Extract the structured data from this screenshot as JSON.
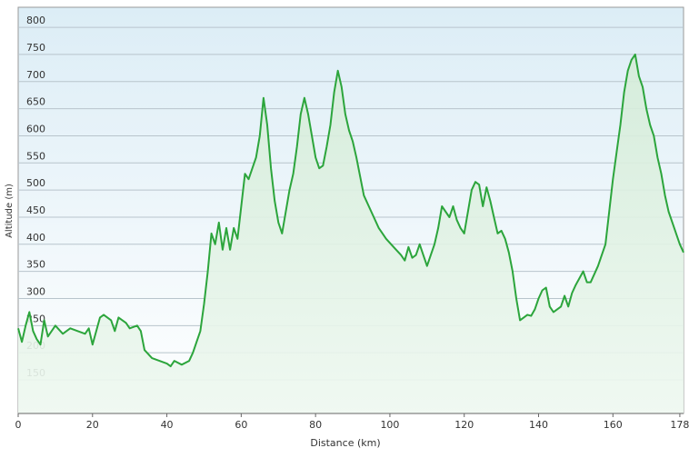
{
  "chart_data": {
    "type": "area",
    "x_label": "Distance  (km)",
    "y_label": "Altitude (m)",
    "x": [
      0,
      1,
      2,
      3,
      4,
      5,
      6,
      7,
      8,
      10,
      12,
      14,
      16,
      18,
      19,
      20,
      22,
      23,
      25,
      26,
      27,
      29,
      30,
      32,
      33,
      34,
      36,
      38,
      40,
      41,
      42,
      44,
      46,
      47,
      48,
      49,
      50,
      51,
      52,
      53,
      54,
      55,
      56,
      57,
      58,
      59,
      60,
      61,
      62,
      63,
      64,
      65,
      66,
      67,
      68,
      69,
      70,
      71,
      72,
      73,
      74,
      75,
      76,
      77,
      78,
      79,
      80,
      81,
      82,
      83,
      84,
      85,
      86,
      87,
      88,
      89,
      90,
      91,
      92,
      93,
      95,
      97,
      99,
      101,
      103,
      104,
      105,
      106,
      107,
      108,
      109,
      110,
      111,
      112,
      113,
      114,
      115,
      116,
      117,
      118,
      119,
      120,
      121,
      122,
      123,
      124,
      125,
      126,
      127,
      128,
      129,
      130,
      131,
      132,
      133,
      134,
      135,
      136,
      137,
      138,
      139,
      140,
      141,
      142,
      143,
      144,
      145,
      146,
      147,
      148,
      149,
      150,
      152,
      153,
      154,
      155,
      156,
      157,
      158,
      159,
      160,
      161,
      162,
      163,
      164,
      165,
      166,
      167,
      168,
      169,
      170,
      171,
      172,
      173,
      174,
      175,
      176,
      177,
      178,
      179
    ],
    "series": [
      {
        "name": "Altitude",
        "color": "#2ca53c",
        "values": [
          245,
          220,
          250,
          275,
          240,
          225,
          215,
          260,
          230,
          250,
          235,
          245,
          240,
          235,
          245,
          215,
          265,
          270,
          260,
          240,
          265,
          255,
          245,
          250,
          240,
          205,
          190,
          185,
          180,
          175,
          185,
          178,
          185,
          200,
          220,
          240,
          290,
          350,
          420,
          400,
          440,
          390,
          430,
          390,
          430,
          410,
          470,
          530,
          520,
          540,
          560,
          600,
          670,
          620,
          540,
          480,
          440,
          420,
          460,
          500,
          530,
          580,
          640,
          670,
          640,
          600,
          560,
          540,
          545,
          580,
          620,
          680,
          720,
          690,
          640,
          610,
          590,
          560,
          525,
          490,
          460,
          430,
          410,
          395,
          380,
          370,
          395,
          375,
          380,
          400,
          380,
          360,
          380,
          400,
          430,
          470,
          460,
          450,
          470,
          445,
          430,
          420,
          460,
          500,
          515,
          510,
          470,
          505,
          480,
          450,
          420,
          425,
          410,
          385,
          350,
          300,
          260,
          265,
          270,
          268,
          280,
          300,
          315,
          320,
          285,
          275,
          280,
          285,
          305,
          285,
          310,
          325,
          350,
          330,
          330,
          345,
          360,
          380,
          400,
          460,
          520,
          570,
          620,
          680,
          720,
          740,
          750,
          710,
          690,
          650,
          620,
          600,
          560,
          530,
          490,
          460,
          440,
          420,
          400,
          385
        ]
      }
    ],
    "xlim": [
      0,
      179
    ],
    "ylim": [
      88,
      837
    ],
    "xticks": [
      0,
      20,
      40,
      60,
      80,
      100,
      120,
      140,
      160,
      178
    ],
    "yticks": [
      150,
      200,
      250,
      300,
      350,
      400,
      450,
      500,
      550,
      600,
      650,
      700,
      750,
      800
    ],
    "grid": true
  }
}
